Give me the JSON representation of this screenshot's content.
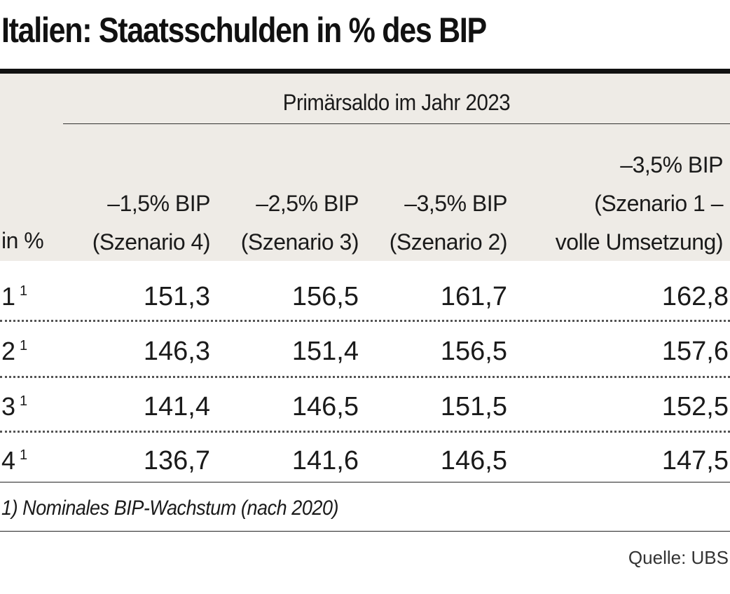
{
  "chart_data": {
    "type": "table",
    "title": "Italien: Staatsschulden in % des BIP",
    "group_header": "Primärsaldo im Jahr 2023",
    "row_header": "in %",
    "columns": [
      {
        "line1": "",
        "line2": "–1,5% BIP",
        "line3": "(Szenario 4)"
      },
      {
        "line1": "",
        "line2": "–2,5% BIP",
        "line3": "(Szenario 3)"
      },
      {
        "line1": "",
        "line2": "–3,5% BIP",
        "line3": "(Szenario 2)"
      },
      {
        "line1": "–3,5% BIP",
        "line2": "(Szenario 1 –",
        "line3": "volle Umsetzung)"
      }
    ],
    "rows": [
      {
        "label": "1",
        "note": "1",
        "values": [
          "151,3",
          "156,5",
          "161,7",
          "162,8"
        ]
      },
      {
        "label": "2",
        "note": "1",
        "values": [
          "146,3",
          "151,4",
          "156,5",
          "157,6"
        ]
      },
      {
        "label": "3",
        "note": "1",
        "values": [
          "141,4",
          "146,5",
          "151,5",
          "152,5"
        ]
      },
      {
        "label": "4",
        "note": "1",
        "values": [
          "136,7",
          "141,6",
          "146,5",
          "147,5"
        ]
      }
    ],
    "footnote": "1) Nominales BIP-Wachstum (nach 2020)",
    "source": "Quelle: UBS"
  }
}
